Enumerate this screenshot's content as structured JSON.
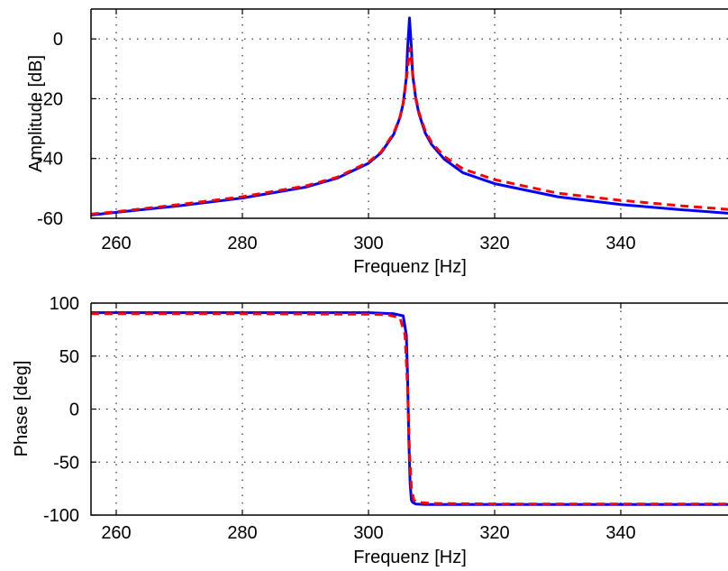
{
  "chart_data": [
    {
      "type": "line",
      "xlabel": "Frequenz [Hz]",
      "ylabel": "Amplitude [dB]",
      "xlim": [
        256,
        357
      ],
      "ylim": [
        -60,
        10
      ],
      "x_ticks": [
        "260",
        "280",
        "300",
        "320",
        "340"
      ],
      "y_ticks": [
        "0",
        "-20",
        "-40",
        "-60"
      ],
      "x_tick_values": [
        260,
        280,
        300,
        320,
        340
      ],
      "y_tick_values": [
        0,
        -20,
        -40,
        -60
      ],
      "grid": "dotted",
      "series": [
        {
          "style": "solid",
          "color": "#0000ff",
          "x": [
            256,
            260,
            270,
            280,
            290,
            295,
            300,
            302,
            304,
            305,
            305.5,
            306,
            306.2,
            306.5,
            306.8,
            307,
            307.5,
            308,
            309,
            310,
            312,
            315,
            320,
            330,
            340,
            350,
            357
          ],
          "y": [
            -58.9,
            -58.0,
            -55.8,
            -53.2,
            -49.6,
            -46.6,
            -41.6,
            -38.1,
            -31.9,
            -26.2,
            -21.6,
            -13.0,
            -3.0,
            7.0,
            -3.0,
            -12.0,
            -20.0,
            -25.0,
            -31.5,
            -35.3,
            -40.2,
            -44.8,
            -48.4,
            -52.8,
            -55.4,
            -57.2,
            -58.3
          ]
        },
        {
          "style": "dashed",
          "color": "#ff0000",
          "x": [
            256,
            260,
            270,
            280,
            290,
            295,
            300,
            302,
            304,
            305,
            305.5,
            306,
            306.3,
            306.6,
            307,
            307.5,
            308,
            309,
            310,
            312,
            315,
            320,
            330,
            340,
            350,
            357
          ],
          "y": [
            -58.6,
            -57.8,
            -55.4,
            -52.8,
            -49.2,
            -46.3,
            -41.2,
            -37.8,
            -31.5,
            -26.0,
            -21.5,
            -13.5,
            -8.0,
            -3.0,
            -11.5,
            -19.5,
            -24.5,
            -30.8,
            -34.6,
            -39.3,
            -43.5,
            -47.1,
            -51.6,
            -54.0,
            -55.9,
            -57.0
          ]
        }
      ]
    },
    {
      "type": "line",
      "xlabel": "Frequenz [Hz]",
      "ylabel": "Phase [deg]",
      "xlim": [
        256,
        357
      ],
      "ylim": [
        -100,
        100
      ],
      "x_ticks": [
        "260",
        "280",
        "300",
        "320",
        "340"
      ],
      "y_ticks": [
        "100",
        "50",
        "0",
        "-50",
        "-100"
      ],
      "x_tick_values": [
        260,
        280,
        300,
        320,
        340
      ],
      "y_tick_values": [
        100,
        50,
        0,
        -50,
        -100
      ],
      "grid": "dotted",
      "series": [
        {
          "style": "solid",
          "color": "#0000ff",
          "x": [
            256,
            280,
            300,
            304,
            305.5,
            306,
            306.2,
            306.4,
            306.6,
            306.8,
            307,
            307.5,
            309,
            320,
            340,
            357
          ],
          "y": [
            91,
            91,
            91,
            90,
            88,
            70,
            30,
            -30,
            -70,
            -86,
            -88,
            -89.5,
            -90,
            -90,
            -90,
            -90
          ]
        },
        {
          "style": "dashed",
          "color": "#ff0000",
          "x": [
            256,
            280,
            300,
            303,
            305,
            305.8,
            306.2,
            306.5,
            306.8,
            307.2,
            307.8,
            310,
            320,
            340,
            357
          ],
          "y": [
            90,
            90,
            89.5,
            89,
            86,
            70,
            20,
            -40,
            -75,
            -86,
            -88,
            -89,
            -89.5,
            -89.5,
            -89.5
          ]
        }
      ]
    }
  ]
}
